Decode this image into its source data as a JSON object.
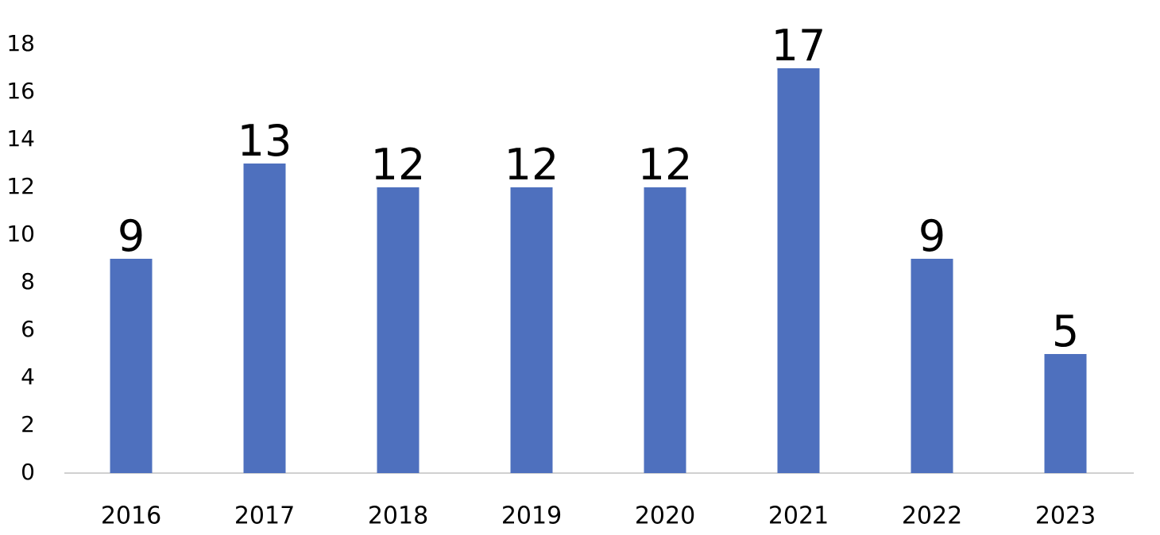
{
  "chart_data": {
    "type": "bar",
    "categories": [
      "2016",
      "2017",
      "2018",
      "2019",
      "2020",
      "2021",
      "2022",
      "2023"
    ],
    "values": [
      9,
      13,
      12,
      12,
      12,
      17,
      9,
      5
    ],
    "color": "#4e70be",
    "ylim": [
      0,
      18
    ],
    "yticks": [
      0,
      2,
      4,
      6,
      8,
      10,
      12,
      14,
      16,
      18
    ],
    "grid": false,
    "data_labels": true
  }
}
